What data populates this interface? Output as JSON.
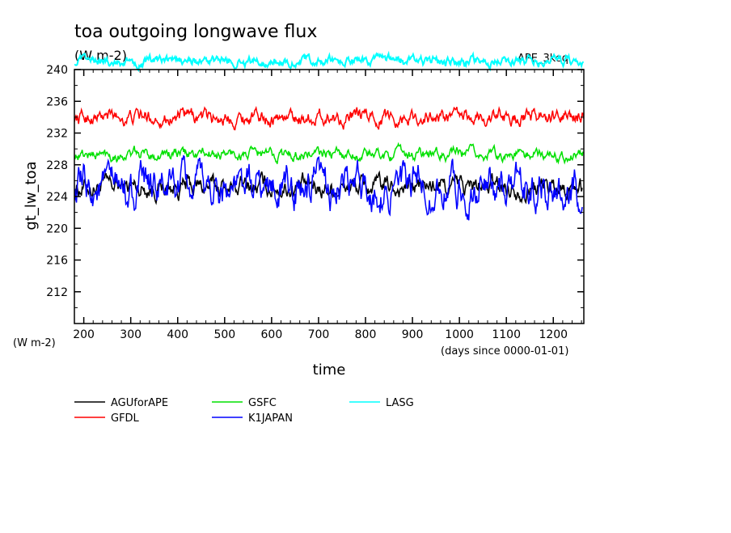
{
  "chart_data": {
    "type": "line",
    "title": "toa outgoing longwave flux",
    "subtitle": "(W m-2)",
    "experiment": "APE_3keq",
    "ylabel": "gt_lw_toa",
    "yunits_bottom": "(W m-2)",
    "xlabel": "time",
    "xunits": "(days since 0000-01-01)",
    "xlim": [
      180,
      1265
    ],
    "ylim": [
      208,
      240
    ],
    "xticks": [
      200,
      300,
      400,
      500,
      600,
      700,
      800,
      900,
      1000,
      1100,
      1200
    ],
    "yticks": [
      212,
      216,
      220,
      224,
      228,
      232,
      236,
      240
    ],
    "x_start": 180,
    "x_end": 1265,
    "grid": false,
    "legend_position": "bottom",
    "series": [
      {
        "name": "AGUforAPE",
        "color": "#000000",
        "mean": 225.2,
        "amplitude": 1.9,
        "min": 222,
        "max": 228,
        "x_start": 180,
        "x_end": 1262
      },
      {
        "name": "GFDL",
        "color": "#ff0000",
        "mean": 234.0,
        "amplitude": 1.4,
        "min": 231,
        "max": 237.2,
        "x_start": 180,
        "x_end": 1265
      },
      {
        "name": "GSFC",
        "color": "#00e000",
        "mean": 229.3,
        "amplitude": 1.1,
        "min": 226.5,
        "max": 232,
        "x_start": 180,
        "x_end": 1265
      },
      {
        "name": "K1JAPAN",
        "color": "#0000ff",
        "mean": 225.0,
        "amplitude": 3.6,
        "min": 219.5,
        "max": 232.8,
        "x_start": 180,
        "x_end": 1262
      },
      {
        "name": "LASG",
        "color": "#00ffff",
        "mean": 241.0,
        "amplitude": 0.9,
        "min": 239.2,
        "max": 242.5,
        "x_start": 180,
        "x_end": 1265
      }
    ]
  }
}
